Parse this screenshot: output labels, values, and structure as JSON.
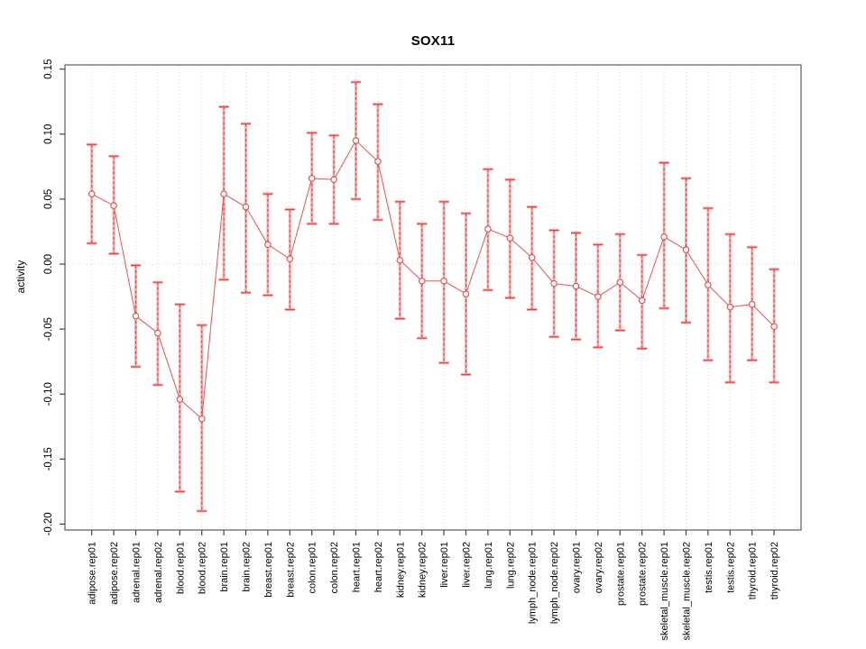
{
  "chart_data": {
    "type": "line",
    "title": "SOX11",
    "xlabel": "",
    "ylabel": "activity",
    "legend": null,
    "marker": "open-circle",
    "error_bars": true,
    "grid": "vertical dotted line at each category",
    "zero_line": "dotted horizontal line at y=0",
    "ylim": [
      -0.2,
      0.15
    ],
    "yticks": {
      "values": [
        0.15,
        0.1,
        0.05,
        0.0,
        -0.05,
        -0.1,
        -0.15,
        -0.2
      ],
      "labels": [
        "0.15",
        "0.10",
        "0.05",
        "0.00",
        "-0.05",
        "-0.10",
        "-0.15",
        "-0.20"
      ]
    },
    "categories": [
      "adipose.rep01",
      "adipose.rep02",
      "adrenal.rep01",
      "adrenal.rep02",
      "blood.rep01",
      "blood.rep02",
      "brain.rep01",
      "brain.rep02",
      "breast.rep01",
      "breast.rep02",
      "colon.rep01",
      "colon.rep02",
      "heart.rep01",
      "heart.rep02",
      "kidney.rep01",
      "kidney.rep02",
      "liver.rep01",
      "liver.rep02",
      "lung.rep01",
      "lung.rep02",
      "lymph_node.rep01",
      "lymph_node.rep02",
      "ovary.rep01",
      "ovary.rep02",
      "prostate.rep01",
      "prostate.rep02",
      "skeletal_muscle.rep01",
      "skeletal_muscle.rep02",
      "testis.rep01",
      "testis.rep02",
      "thyroid.rep01",
      "thyroid.rep02"
    ],
    "series": [
      {
        "name": "activity",
        "values": [
          0.054,
          0.045,
          -0.04,
          -0.053,
          -0.104,
          -0.119,
          0.054,
          0.044,
          0.015,
          0.004,
          0.066,
          0.065,
          0.095,
          0.079,
          0.003,
          -0.013,
          -0.013,
          -0.023,
          0.027,
          0.02,
          0.005,
          -0.015,
          -0.017,
          -0.025,
          -0.014,
          -0.028,
          0.021,
          0.011,
          -0.016,
          -0.033,
          -0.031,
          -0.048
        ],
        "error_low": [
          0.016,
          0.008,
          -0.079,
          -0.093,
          -0.175,
          -0.19,
          -0.012,
          -0.022,
          -0.024,
          -0.035,
          0.031,
          0.031,
          0.05,
          0.034,
          -0.042,
          -0.057,
          -0.076,
          -0.085,
          -0.02,
          -0.026,
          -0.035,
          -0.056,
          -0.058,
          -0.064,
          -0.051,
          -0.065,
          -0.034,
          -0.045,
          -0.074,
          -0.091,
          -0.074,
          -0.091
        ],
        "error_high": [
          0.092,
          0.083,
          -0.001,
          -0.014,
          -0.031,
          -0.047,
          0.121,
          0.108,
          0.054,
          0.042,
          0.101,
          0.099,
          0.14,
          0.123,
          0.048,
          0.031,
          0.048,
          0.039,
          0.073,
          0.065,
          0.044,
          0.026,
          0.024,
          0.015,
          0.023,
          0.007,
          0.078,
          0.066,
          0.043,
          0.023,
          0.013,
          -0.004
        ]
      }
    ],
    "colors": {
      "series_line": "#f25050",
      "marker_stroke": "#ef4646",
      "marker_fill": "#ffffff",
      "error_band": "#f9a6a4",
      "error_dash": "#e84040",
      "grid": "#d9d9d9",
      "zero_line": "#cfcfcf",
      "box": "#666666",
      "tick": "#444444",
      "text": "#000000"
    }
  }
}
